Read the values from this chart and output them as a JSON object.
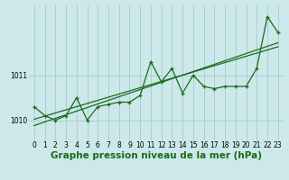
{
  "bg_color": "#cce8ea",
  "grid_color": "#aacfd2",
  "line_color": "#1a6b1a",
  "marker_color": "#1a6b1a",
  "xlabel": "Graphe pression niveau de la mer (hPa)",
  "xlabel_fontsize": 7.5,
  "xlim": [
    -0.5,
    23.5
  ],
  "ylim": [
    1009.55,
    1012.55
  ],
  "yticks": [
    1010,
    1011
  ],
  "xticks": [
    0,
    1,
    2,
    3,
    4,
    5,
    6,
    7,
    8,
    9,
    10,
    11,
    12,
    13,
    14,
    15,
    16,
    17,
    18,
    19,
    20,
    21,
    22,
    23
  ],
  "series1": [
    1010.3,
    1010.1,
    1010.0,
    1010.1,
    1010.5,
    1010.0,
    1010.3,
    1010.35,
    1010.4,
    1010.4,
    1010.55,
    1011.3,
    1010.85,
    1011.15,
    1010.6,
    1011.0,
    1010.75,
    1010.7,
    1010.75,
    1010.75,
    1010.75,
    1011.15,
    1012.3,
    1011.95
  ],
  "trend1": [
    1010.02,
    1010.09,
    1010.16,
    1010.23,
    1010.3,
    1010.37,
    1010.44,
    1010.51,
    1010.58,
    1010.65,
    1010.72,
    1010.79,
    1010.86,
    1010.93,
    1011.0,
    1011.07,
    1011.14,
    1011.21,
    1011.28,
    1011.35,
    1011.42,
    1011.49,
    1011.56,
    1011.63
  ],
  "trend2": [
    1009.88,
    1009.96,
    1010.04,
    1010.12,
    1010.2,
    1010.28,
    1010.36,
    1010.44,
    1010.52,
    1010.6,
    1010.68,
    1010.76,
    1010.84,
    1010.92,
    1011.0,
    1011.08,
    1011.16,
    1011.24,
    1011.32,
    1011.4,
    1011.48,
    1011.56,
    1011.64,
    1011.72
  ],
  "tick_fontsize": 5.5,
  "figsize": [
    3.2,
    2.0
  ],
  "dpi": 100
}
